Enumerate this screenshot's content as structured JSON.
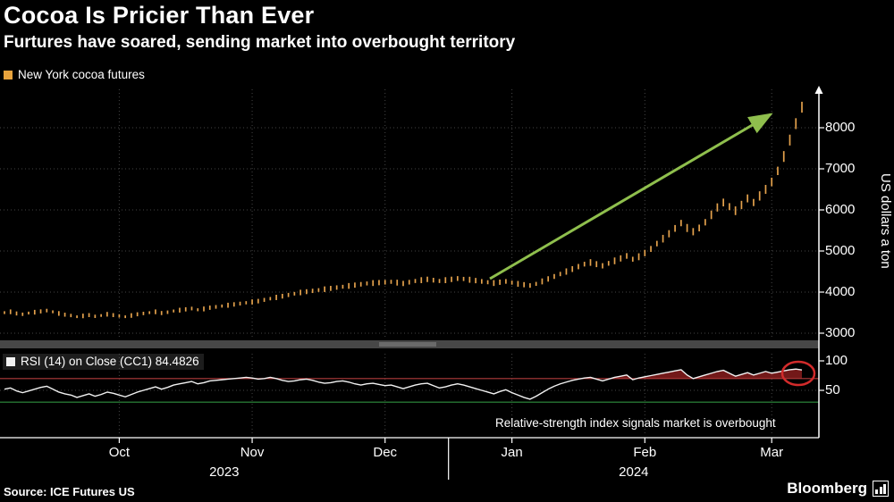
{
  "colors": {
    "background": "#000000",
    "bars": "#e3a14c",
    "legend_swatch": "#e8a33d",
    "rsi_line": "#f2f2f2",
    "overbought_fill": "#801c1c",
    "overbought_line": "#b03a3a",
    "oversold_line": "#2f8f3f",
    "arrow": "#8fbf4d",
    "circle": "#d22b2b",
    "grid": "#454545",
    "axis": "#ffffff",
    "divider": "#474747"
  },
  "footer": {
    "source": "Source: ICE Futures US",
    "brand": "Bloomberg"
  },
  "chart_data": {
    "type": "ohlc",
    "title": "Cocoa Is Pricier Than Ever",
    "subtitle": "Furtures have soared, sending market into overbought territory",
    "x_tick_labels": [
      "Oct",
      "Nov",
      "Dec",
      "Jan",
      "Feb",
      "Mar"
    ],
    "year_labels": [
      "2023",
      "2024"
    ],
    "month_start_indices": [
      19,
      41,
      63,
      84,
      106,
      127
    ],
    "panels": [
      {
        "name": "price",
        "type": "ohlc-bars",
        "legend": "New York cocoa futures",
        "ylabel": "US dollars a ton",
        "yticks": [
          8000,
          7000,
          6000,
          5000,
          4000,
          3000
        ],
        "ylim": [
          2900,
          8700
        ],
        "values": [
          3500,
          3520,
          3480,
          3460,
          3490,
          3510,
          3530,
          3550,
          3520,
          3480,
          3450,
          3430,
          3400,
          3420,
          3440,
          3410,
          3430,
          3460,
          3440,
          3420,
          3400,
          3430,
          3460,
          3480,
          3500,
          3520,
          3490,
          3510,
          3540,
          3560,
          3580,
          3600,
          3570,
          3590,
          3620,
          3640,
          3660,
          3680,
          3700,
          3720,
          3740,
          3760,
          3780,
          3810,
          3840,
          3870,
          3900,
          3930,
          3960,
          3990,
          4010,
          4030,
          4050,
          4070,
          4090,
          4110,
          4130,
          4150,
          4170,
          4190,
          4210,
          4220,
          4230,
          4240,
          4250,
          4230,
          4210,
          4240,
          4270,
          4290,
          4310,
          4290,
          4270,
          4290,
          4310,
          4330,
          4320,
          4300,
          4280,
          4260,
          4240,
          4220,
          4240,
          4260,
          4230,
          4200,
          4180,
          4160,
          4200,
          4260,
          4320,
          4380,
          4440,
          4500,
          4560,
          4620,
          4680,
          4720,
          4680,
          4640,
          4700,
          4760,
          4820,
          4880,
          4800,
          4860,
          4950,
          5050,
          5180,
          5300,
          5420,
          5550,
          5680,
          5560,
          5470,
          5560,
          5700,
          5880,
          6060,
          6180,
          6080,
          5980,
          6120,
          6280,
          6180,
          6340,
          6500,
          6680,
          6950,
          7300,
          7700,
          8100,
          8500
        ]
      },
      {
        "name": "rsi",
        "type": "line",
        "legend": "RSI (14) on Close (CC1) 84.4826",
        "yticks": [
          100,
          50
        ],
        "ylim": [
          0,
          105
        ],
        "overbought_level": 70,
        "oversold_level": 30,
        "last_value": 84.4826,
        "values": [
          52,
          54,
          49,
          46,
          49,
          52,
          55,
          57,
          52,
          47,
          44,
          42,
          38,
          41,
          44,
          40,
          43,
          47,
          45,
          42,
          39,
          43,
          47,
          50,
          53,
          56,
          52,
          55,
          59,
          61,
          63,
          65,
          61,
          63,
          66,
          67,
          68,
          69,
          70,
          71,
          72,
          71,
          69,
          70,
          72,
          70,
          67,
          65,
          66,
          68,
          69,
          67,
          64,
          62,
          63,
          65,
          66,
          64,
          61,
          59,
          61,
          62,
          60,
          58,
          59,
          56,
          53,
          56,
          59,
          61,
          62,
          58,
          54,
          56,
          59,
          61,
          59,
          56,
          53,
          50,
          47,
          44,
          48,
          51,
          46,
          42,
          38,
          35,
          40,
          46,
          52,
          57,
          61,
          64,
          67,
          69,
          71,
          72,
          69,
          66,
          69,
          72,
          74,
          76,
          68,
          71,
          73,
          75,
          77,
          79,
          81,
          83,
          85,
          76,
          70,
          73,
          76,
          79,
          82,
          84,
          79,
          74,
          77,
          80,
          76,
          79,
          82,
          79,
          81,
          83,
          85,
          86,
          84.4826
        ]
      }
    ],
    "annotations": [
      {
        "type": "arrow",
        "meaning": "price uptrend"
      },
      {
        "type": "circle",
        "meaning": "RSI at overbought extreme"
      },
      {
        "type": "text",
        "text": "Relative-strength index signals market is overbought"
      }
    ]
  }
}
